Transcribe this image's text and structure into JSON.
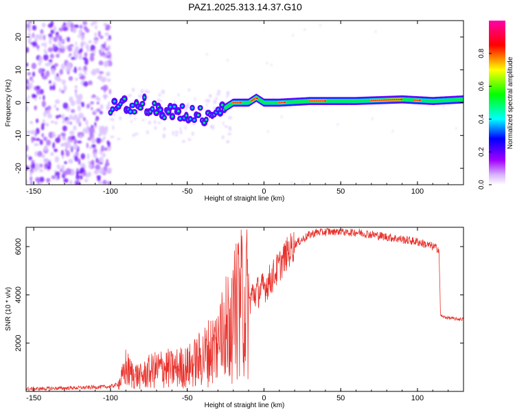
{
  "title": "PAZ1.2025.313.14.37.G10",
  "chart_data": [
    {
      "type": "heatmap",
      "xlabel": "Height of straight line (km)",
      "ylabel": "Frequency (Hz)",
      "xlim": [
        -155,
        130
      ],
      "ylim": [
        -25,
        25
      ],
      "xticks": [
        -150,
        -100,
        -50,
        0,
        50,
        100
      ],
      "yticks": [
        -20,
        -10,
        0,
        10,
        20
      ],
      "colorbar": {
        "label": "Normalized spectral amplitude",
        "range": [
          0,
          1
        ],
        "ticks": [
          "0.0",
          "0.2",
          "0.4",
          "0.6",
          "0.8"
        ],
        "colors": [
          "#ffffff",
          "#a000ff",
          "#0000ff",
          "#00ffff",
          "#00ff00",
          "#ffff00",
          "#ff0000",
          "#ff00aa"
        ]
      },
      "signal_track": [
        {
          "x": -100,
          "y": -2
        },
        {
          "x": -90,
          "y": -1
        },
        {
          "x": -80,
          "y": 0
        },
        {
          "x": -70,
          "y": -2
        },
        {
          "x": -60,
          "y": -3
        },
        {
          "x": -50,
          "y": -3
        },
        {
          "x": -40,
          "y": -4
        },
        {
          "x": -30,
          "y": -3
        },
        {
          "x": -20,
          "y": 0
        },
        {
          "x": -10,
          "y": 0
        },
        {
          "x": -5,
          "y": 1.5
        },
        {
          "x": 0,
          "y": 0
        },
        {
          "x": 10,
          "y": 0
        },
        {
          "x": 30,
          "y": 0.5
        },
        {
          "x": 60,
          "y": 0.5
        },
        {
          "x": 90,
          "y": 1
        },
        {
          "x": 110,
          "y": 0.5
        },
        {
          "x": 130,
          "y": 1
        }
      ]
    },
    {
      "type": "line",
      "xlabel": "Height of straight line (km)",
      "ylabel": "SNR (10 * v/v)",
      "xlim": [
        -155,
        130
      ],
      "ylim": [
        0,
        6800
      ],
      "xticks": [
        -150,
        -100,
        -50,
        0,
        50,
        100
      ],
      "yticks": [
        2000,
        4000,
        6000
      ],
      "color": "#e8302a",
      "series": [
        {
          "x": [
            -155,
            -140,
            -120,
            -100,
            -95,
            -92,
            -90,
            -88,
            -85,
            -80,
            -75,
            -70,
            -65,
            -60,
            -55,
            -50,
            -45,
            -40,
            -35,
            -30,
            -28,
            -25,
            -22,
            -20,
            -18,
            -15,
            -12,
            -10,
            -8,
            -5,
            -2,
            0,
            5,
            10,
            15,
            20,
            25,
            30,
            35,
            40,
            45,
            50,
            55,
            60,
            65,
            70,
            75,
            80,
            85,
            90,
            95,
            100,
            105,
            110,
            114,
            115,
            116,
            120,
            125,
            130
          ],
          "y": [
            100,
            120,
            150,
            200,
            300,
            600,
            1000,
            800,
            700,
            600,
            800,
            900,
            1000,
            900,
            1000,
            1000,
            1200,
            1400,
            1700,
            2000,
            2200,
            2600,
            3000,
            3000,
            3300,
            3700,
            3800,
            3600,
            4000,
            4100,
            4200,
            4300,
            4700,
            5200,
            5700,
            6100,
            6300,
            6500,
            6600,
            6600,
            6650,
            6650,
            6600,
            6600,
            6550,
            6500,
            6450,
            6400,
            6350,
            6300,
            6250,
            6200,
            6100,
            6000,
            5900,
            3200,
            3100,
            3050,
            3000,
            3000
          ]
        }
      ]
    }
  ]
}
